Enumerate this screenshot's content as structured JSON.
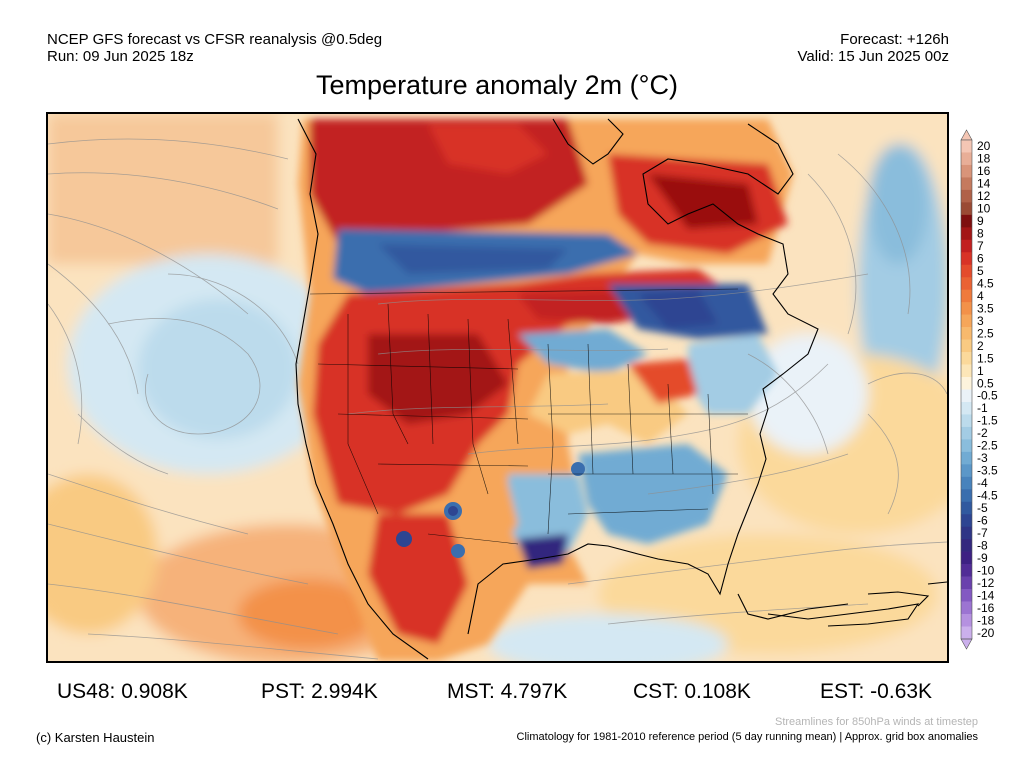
{
  "header": {
    "model_line": "NCEP GFS forecast vs CFSR reanalysis @0.5deg",
    "run_line": "Run: 09 Jun 2025 18z",
    "forecast_line": "Forecast: +126h",
    "valid_line": "Valid: 15 Jun 2025 00z"
  },
  "title": "Temperature anomaly 2m (°C)",
  "colorbar": {
    "labels": [
      "20",
      "18",
      "16",
      "14",
      "12",
      "10",
      "9",
      "8",
      "7",
      "6",
      "5",
      "4.5",
      "4",
      "3.5",
      "3",
      "2.5",
      "2",
      "1.5",
      "1",
      "0.5",
      "-0.5",
      "-1",
      "-1.5",
      "-2",
      "-2.5",
      "-3",
      "-3.5",
      "-4",
      "-4.5",
      "-5",
      "-6",
      "-7",
      "-8",
      "-9",
      "-10",
      "-12",
      "-14",
      "-16",
      "-18",
      "-20"
    ],
    "colors": [
      "#f4c6b4",
      "#e8ae97",
      "#d99479",
      "#c57a5e",
      "#b06148",
      "#9a4a34",
      "#7e0f0f",
      "#a31616",
      "#c22020",
      "#d83326",
      "#e44b2c",
      "#ea6233",
      "#ef7a3c",
      "#f39149",
      "#f6a65a",
      "#f8b96d",
      "#f9ca82",
      "#fbd99b",
      "#fce6b8",
      "#fdf3dc",
      "#eaf2f8",
      "#d4e8f3",
      "#bcdbec",
      "#a3cce4",
      "#8abddc",
      "#71abd3",
      "#5b97c8",
      "#4883bc",
      "#3a6eae",
      "#30599f",
      "#2d4592",
      "#2e3586",
      "#33287e",
      "#3d2183",
      "#512c96",
      "#6a41ad",
      "#8359c2",
      "#9c74d2",
      "#b591e0",
      "#cbb0ec"
    ]
  },
  "stats": [
    {
      "label": "US48: 0.908K"
    },
    {
      "label": "PST: 2.994K"
    },
    {
      "label": "MST: 4.797K"
    },
    {
      "label": "CST: 0.108K"
    },
    {
      "label": "EST: -0.63K"
    }
  ],
  "footer": {
    "streamlines_note": "Streamlines for 850hPa winds at timestep",
    "copyright": "(c) Karsten Haustein",
    "climatology": "Climatology for 1981-2010 reference period (5 day running mean) | Approx. grid box anomalies"
  },
  "map": {
    "region": "North America",
    "anomaly_colors": {
      "pale_warm": "#fbe3bf",
      "warm": "#f6a65a",
      "hot": "#e44b2c",
      "very_hot": "#c22020",
      "extreme": "#9a1010",
      "neutral": "#f3f3f0",
      "cool": "#bcdbec",
      "cold": "#71abd3",
      "very_cold": "#3a6eae",
      "extreme_cold": "#33287e"
    }
  }
}
